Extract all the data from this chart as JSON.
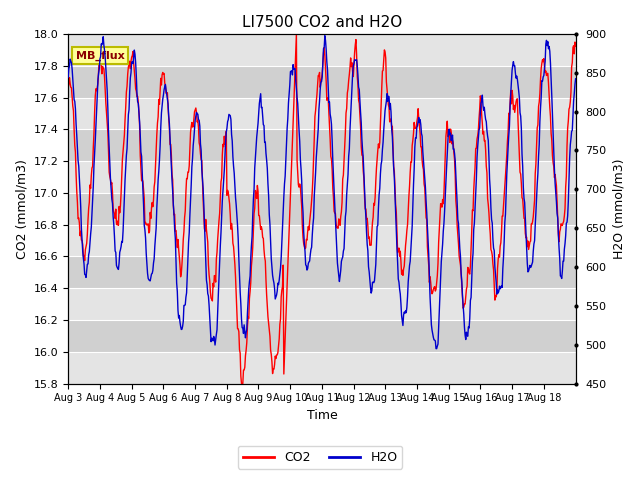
{
  "title": "LI7500 CO2 and H2O",
  "xlabel": "Time",
  "ylabel_left": "CO2 (mmol/m3)",
  "ylabel_right": "H2O (mmol/m3)",
  "co2_ylim": [
    15.8,
    18.0
  ],
  "h2o_ylim": [
    450,
    900
  ],
  "co2_yticks": [
    15.8,
    16.0,
    16.2,
    16.4,
    16.6,
    16.8,
    17.0,
    17.2,
    17.4,
    17.6,
    17.8,
    18.0
  ],
  "h2o_yticks": [
    450,
    500,
    550,
    600,
    650,
    700,
    750,
    800,
    850,
    900
  ],
  "xtick_labels": [
    "Aug 3",
    "Aug 4",
    "Aug 5",
    "Aug 6",
    "Aug 7",
    "Aug 8",
    "Aug 9",
    "Aug 10",
    "Aug 11",
    "Aug 12",
    "Aug 13",
    "Aug 14",
    "Aug 15",
    "Aug 16",
    "Aug 17",
    "Aug 18"
  ],
  "co2_color": "#ff0000",
  "h2o_color": "#0000cc",
  "bg_color": "#f0f0f0",
  "strip_light": "#e4e4e4",
  "strip_dark": "#d0d0d0",
  "annotation_text": "MB_flux",
  "annotation_fg": "#8B0000",
  "annotation_bg": "#ffff99",
  "annotation_border": "#bbbb00",
  "legend_co2": "CO2",
  "legend_h2o": "H2O",
  "num_days": 16,
  "seed": 42
}
